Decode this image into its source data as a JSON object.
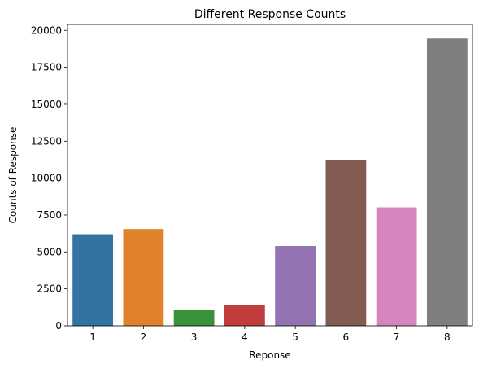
{
  "chart_data": {
    "type": "bar",
    "title": "Different Response Counts",
    "xlabel": "Reponse",
    "ylabel": "Counts of Response",
    "categories": [
      "1",
      "2",
      "3",
      "4",
      "5",
      "6",
      "7",
      "8"
    ],
    "values": [
      6200,
      6550,
      1050,
      1420,
      5400,
      11220,
      8020,
      19450
    ],
    "colors": [
      "#3274a1",
      "#e1812c",
      "#3a923a",
      "#c03d3e",
      "#9372b2",
      "#845b53",
      "#d684bd",
      "#7f7f7f"
    ],
    "ylim": [
      0,
      20400
    ],
    "yticks": [
      0,
      2500,
      5000,
      7500,
      10000,
      12500,
      15000,
      17500,
      20000
    ],
    "ytick_labels": [
      "0",
      "2500",
      "5000",
      "7500",
      "10000",
      "12500",
      "15000",
      "17500",
      "20000"
    ],
    "grid": false,
    "legend": "none"
  }
}
